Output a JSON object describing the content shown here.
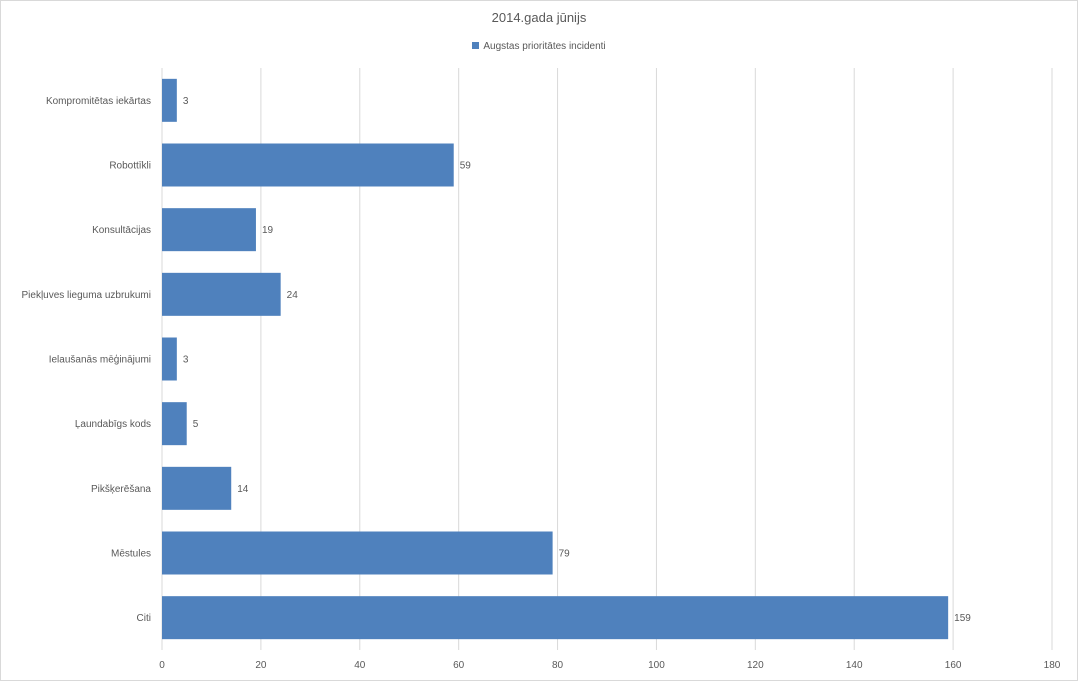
{
  "chart_data": {
    "type": "bar",
    "orientation": "horizontal",
    "title": "2014.gada jūnijs",
    "categories": [
      "Kompromitētas iekārtas",
      "Robottīkli",
      "Konsultācijas",
      "Piekļuves lieguma uzbrukumi",
      "Ielaušanās mēģinājumi",
      "Ļaundabīgs kods",
      "Pikšķerēšana",
      "Mēstules",
      "Citi"
    ],
    "series": [
      {
        "name": "Augstas prioritātes incidenti",
        "color": "#4f81bd",
        "values": [
          3,
          59,
          19,
          24,
          3,
          5,
          14,
          79,
          159
        ]
      }
    ],
    "xlim": [
      0,
      180
    ],
    "xticks": [
      0,
      20,
      40,
      60,
      80,
      100,
      120,
      140,
      160,
      180
    ],
    "grid": true,
    "data_labels": true,
    "legend_position": "top"
  }
}
